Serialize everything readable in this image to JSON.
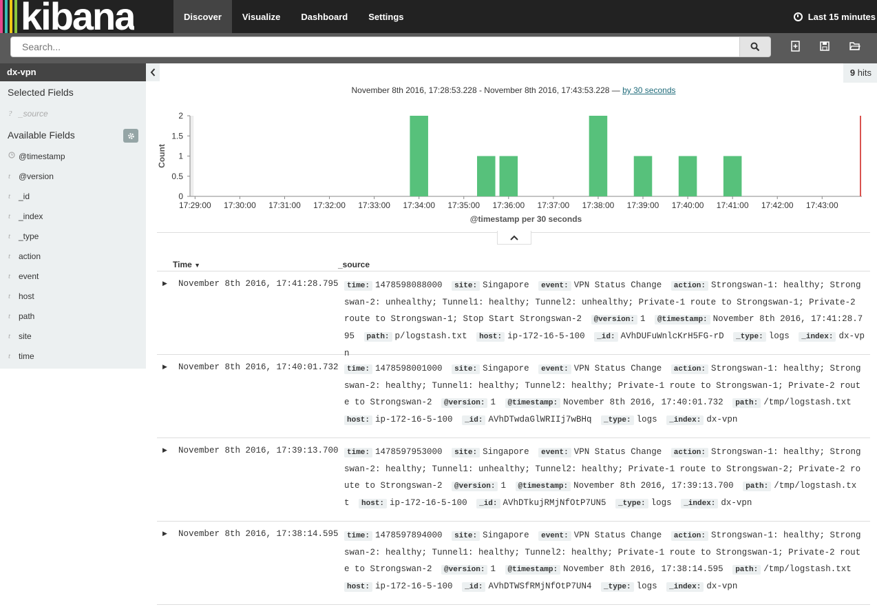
{
  "app": {
    "logo_text": "kibana",
    "stripe_colors": [
      "#e8488b",
      "#3cbeb4",
      "#f0c614",
      "#8cc63f"
    ],
    "nav": [
      {
        "label": "Discover",
        "active": true
      },
      {
        "label": "Visualize",
        "active": false
      },
      {
        "label": "Dashboard",
        "active": false
      },
      {
        "label": "Settings",
        "active": false
      }
    ],
    "time_filter": "Last 15 minutes"
  },
  "search": {
    "placeholder": "Search..."
  },
  "toolbar": {
    "icons": [
      "new-search-icon",
      "save-icon",
      "open-icon"
    ]
  },
  "sidebar": {
    "index": "dx-vpn",
    "selected_heading": "Selected Fields",
    "selected_fields": [
      {
        "type": "?",
        "name": "_source"
      }
    ],
    "available_heading": "Available Fields",
    "available_fields": [
      {
        "type": "clock",
        "name": "@timestamp"
      },
      {
        "type": "t",
        "name": "@version"
      },
      {
        "type": "t",
        "name": "_id"
      },
      {
        "type": "t",
        "name": "_index"
      },
      {
        "type": "t",
        "name": "_type"
      },
      {
        "type": "t",
        "name": "action"
      },
      {
        "type": "t",
        "name": "event"
      },
      {
        "type": "t",
        "name": "host"
      },
      {
        "type": "t",
        "name": "path"
      },
      {
        "type": "t",
        "name": "site"
      },
      {
        "type": "t",
        "name": "time"
      }
    ]
  },
  "hits": {
    "count": "9",
    "label": "hits"
  },
  "range": {
    "text": "November 8th 2016, 17:28:53.228 - November 8th 2016, 17:43:53.228 —",
    "interval": "by 30 seconds"
  },
  "chart_data": {
    "type": "bar",
    "xlabel": "@timestamp per 30 seconds",
    "ylabel": "Count",
    "ylim": [
      0,
      2
    ],
    "yticks": [
      "0",
      "0.5",
      "1",
      "1.5",
      "2"
    ],
    "xticks": [
      "17:29:00",
      "17:30:00",
      "17:31:00",
      "17:32:00",
      "17:33:00",
      "17:34:00",
      "17:35:00",
      "17:36:00",
      "17:37:00",
      "17:38:00",
      "17:39:00",
      "17:40:00",
      "17:41:00",
      "17:42:00",
      "17:43:00"
    ],
    "bars": [
      {
        "x": "17:34:00",
        "value": 2
      },
      {
        "x": "17:35:30",
        "value": 1
      },
      {
        "x": "17:36:00",
        "value": 1
      },
      {
        "x": "17:38:00",
        "value": 2
      },
      {
        "x": "17:39:00",
        "value": 1
      },
      {
        "x": "17:40:00",
        "value": 1
      },
      {
        "x": "17:41:00",
        "value": 1
      }
    ],
    "bar_color": "#57c17b",
    "grid": false
  },
  "table": {
    "time_header": "Time",
    "source_header": "_source",
    "rows": [
      {
        "time": "November 8th 2016, 17:41:28.795",
        "fields": [
          {
            "k": "time:",
            "v": "1478598088000"
          },
          {
            "k": "site:",
            "v": "Singapore"
          },
          {
            "k": "event:",
            "v": "VPN Status Change"
          },
          {
            "k": "action:",
            "v": "Strongswan-1: healthy; Strongswan-2: unhealthy; Tunnel1: healthy; Tunnel2: unhealthy; Private-1 route to Strongswan-1; Private-2 route to Strongswan-1; Stop Start Strongswan-2"
          },
          {
            "k": "@version:",
            "v": "1"
          },
          {
            "k": "@timestamp:",
            "v": "November 8th 2016, 17:41:28.795"
          },
          {
            "k": "path:",
            "v": "p/logstash.txt"
          },
          {
            "k": "host:",
            "v": "ip-172-16-5-100"
          },
          {
            "k": "_id:",
            "v": "AVhDUFuWnlcKrH5FG-rD"
          },
          {
            "k": "_type:",
            "v": "logs"
          },
          {
            "k": "_index:",
            "v": "dx-vpn"
          }
        ]
      },
      {
        "time": "November 8th 2016, 17:40:01.732",
        "fields": [
          {
            "k": "time:",
            "v": "1478598001000"
          },
          {
            "k": "site:",
            "v": "Singapore"
          },
          {
            "k": "event:",
            "v": "VPN Status Change"
          },
          {
            "k": "action:",
            "v": "Strongswan-1: healthy; Strongswan-2: healthy; Tunnel1: healthy; Tunnel2: healthy; Private-1 route to Strongswan-1; Private-2 route to Strongswan-2"
          },
          {
            "k": "@version:",
            "v": "1"
          },
          {
            "k": "@timestamp:",
            "v": "November 8th 2016, 17:40:01.732"
          },
          {
            "k": "path:",
            "v": "/tmp/logstash.txt"
          },
          {
            "k": "host:",
            "v": "ip-172-16-5-100"
          },
          {
            "k": "_id:",
            "v": "AVhDTwdaGlWRIIj7wBHq"
          },
          {
            "k": "_type:",
            "v": "logs"
          },
          {
            "k": "_index:",
            "v": "dx-vpn"
          }
        ]
      },
      {
        "time": "November 8th 2016, 17:39:13.700",
        "fields": [
          {
            "k": "time:",
            "v": "1478597953000"
          },
          {
            "k": "site:",
            "v": "Singapore"
          },
          {
            "k": "event:",
            "v": "VPN Status Change"
          },
          {
            "k": "action:",
            "v": "Strongswan-1: healthy; Strongswan-2: healthy; Tunnel1: unhealthy; Tunnel2: healthy; Private-1 route to Strongswan-2; Private-2 route to Strongswan-2"
          },
          {
            "k": "@version:",
            "v": "1"
          },
          {
            "k": "@timestamp:",
            "v": "November 8th 2016, 17:39:13.700"
          },
          {
            "k": "path:",
            "v": "/tmp/logstash.txt"
          },
          {
            "k": "host:",
            "v": "ip-172-16-5-100"
          },
          {
            "k": "_id:",
            "v": "AVhDTkujRMjNfOtP7UN5"
          },
          {
            "k": "_type:",
            "v": "logs"
          },
          {
            "k": "_index:",
            "v": "dx-vpn"
          }
        ]
      },
      {
        "time": "November 8th 2016, 17:38:14.595",
        "fields": [
          {
            "k": "time:",
            "v": "1478597894000"
          },
          {
            "k": "site:",
            "v": "Singapore"
          },
          {
            "k": "event:",
            "v": "VPN Status Change"
          },
          {
            "k": "action:",
            "v": "Strongswan-1: healthy; Strongswan-2: healthy; Tunnel1: healthy; Tunnel2: healthy; Private-1 route to Strongswan-1; Private-2 route to Strongswan-2"
          },
          {
            "k": "@version:",
            "v": "1"
          },
          {
            "k": "@timestamp:",
            "v": "November 8th 2016, 17:38:14.595"
          },
          {
            "k": "path:",
            "v": "/tmp/logstash.txt"
          },
          {
            "k": "host:",
            "v": "ip-172-16-5-100"
          },
          {
            "k": "_id:",
            "v": "AVhDTWSfRMjNfOtP7UN4"
          },
          {
            "k": "_type:",
            "v": "logs"
          },
          {
            "k": "_index:",
            "v": "dx-vpn"
          }
        ]
      }
    ]
  }
}
